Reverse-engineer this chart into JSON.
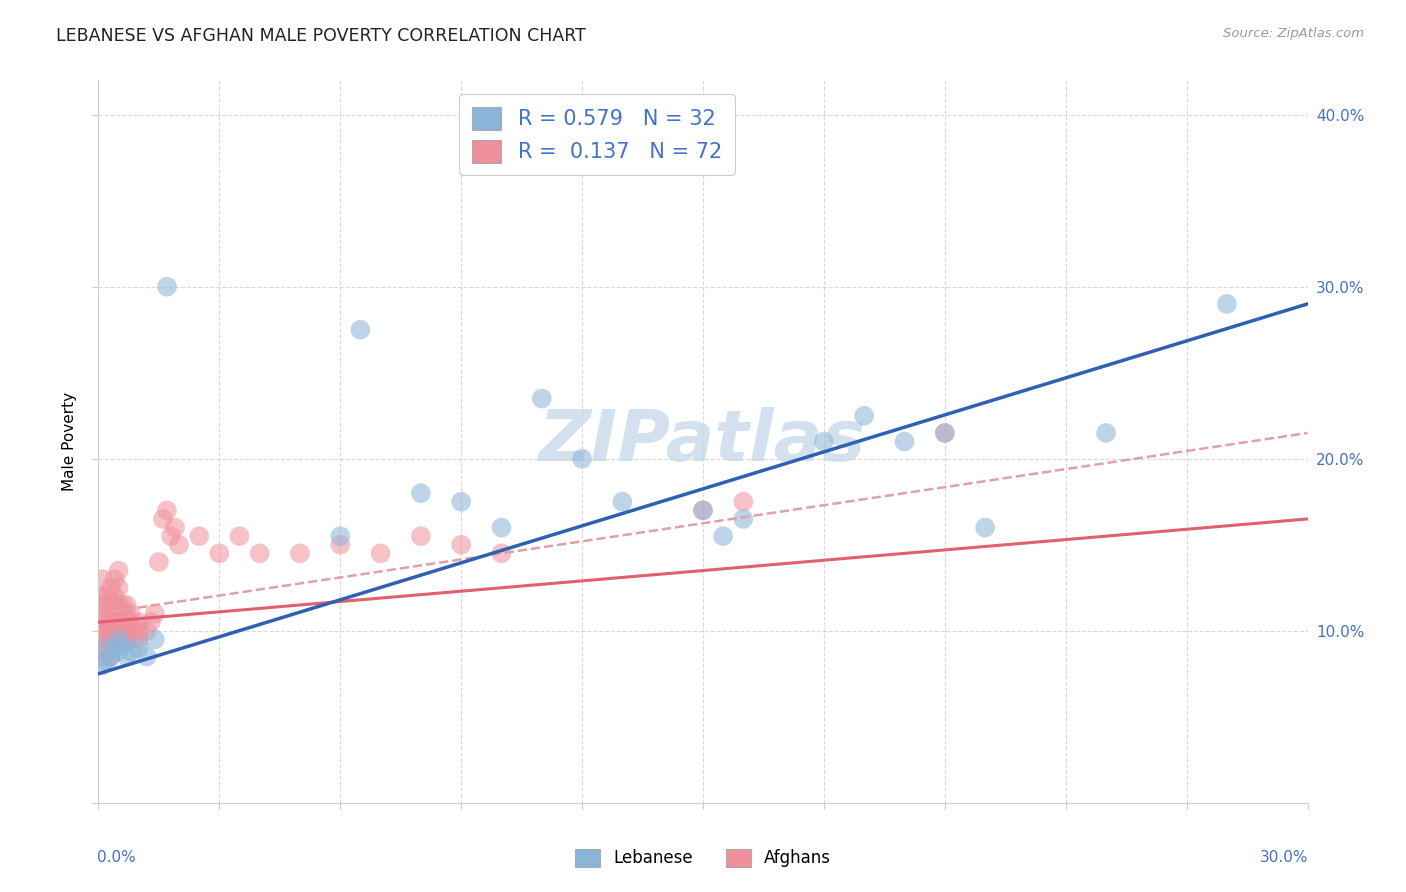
{
  "title": "LEBANESE VS AFGHAN MALE POVERTY CORRELATION CHART",
  "source": "Source: ZipAtlas.com",
  "ylabel": "Male Poverty",
  "xlim": [
    0.0,
    0.3
  ],
  "ylim": [
    0.0,
    0.42
  ],
  "lebanese_r": "0.579",
  "lebanese_n": "32",
  "afghan_r": "0.137",
  "afghan_n": "72",
  "lebanese_color": "#8ab4d8",
  "afghan_color": "#f0909c",
  "lebanese_line_color": "#3060b0",
  "afghan_solid_line_color": "#e06070",
  "afghan_dashed_line_color": "#e0a0a8",
  "watermark_color": "#c5d8ea",
  "grid_color": "#d0d0d0",
  "title_color": "#222222",
  "source_color": "#999999",
  "leb_x": [
    0.001,
    0.001,
    0.002,
    0.003,
    0.004,
    0.005,
    0.005,
    0.006,
    0.007,
    0.008,
    0.01,
    0.012,
    0.014,
    0.017,
    0.06,
    0.065,
    0.08,
    0.09,
    0.1,
    0.11,
    0.12,
    0.13,
    0.15,
    0.155,
    0.16,
    0.18,
    0.19,
    0.2,
    0.21,
    0.22,
    0.25,
    0.28
  ],
  "leb_y": [
    0.08,
    0.09,
    0.082,
    0.085,
    0.09,
    0.088,
    0.095,
    0.092,
    0.085,
    0.088,
    0.09,
    0.085,
    0.095,
    0.3,
    0.155,
    0.275,
    0.18,
    0.175,
    0.16,
    0.235,
    0.2,
    0.175,
    0.17,
    0.155,
    0.165,
    0.21,
    0.225,
    0.21,
    0.215,
    0.16,
    0.215,
    0.29
  ],
  "afg_x": [
    0.001,
    0.001,
    0.001,
    0.001,
    0.001,
    0.001,
    0.001,
    0.001,
    0.002,
    0.002,
    0.002,
    0.002,
    0.002,
    0.002,
    0.003,
    0.003,
    0.003,
    0.003,
    0.003,
    0.003,
    0.004,
    0.004,
    0.004,
    0.004,
    0.004,
    0.004,
    0.005,
    0.005,
    0.005,
    0.005,
    0.005,
    0.005,
    0.005,
    0.006,
    0.006,
    0.006,
    0.006,
    0.006,
    0.007,
    0.007,
    0.007,
    0.007,
    0.008,
    0.008,
    0.008,
    0.009,
    0.009,
    0.01,
    0.01,
    0.01,
    0.012,
    0.013,
    0.014,
    0.015,
    0.016,
    0.017,
    0.018,
    0.019,
    0.02,
    0.025,
    0.03,
    0.035,
    0.04,
    0.05,
    0.06,
    0.07,
    0.08,
    0.09,
    0.1,
    0.15,
    0.16,
    0.21
  ],
  "afg_y": [
    0.095,
    0.1,
    0.105,
    0.115,
    0.12,
    0.13,
    0.11,
    0.085,
    0.095,
    0.1,
    0.105,
    0.115,
    0.12,
    0.09,
    0.095,
    0.1,
    0.105,
    0.11,
    0.085,
    0.125,
    0.095,
    0.1,
    0.11,
    0.115,
    0.12,
    0.13,
    0.095,
    0.1,
    0.105,
    0.11,
    0.115,
    0.125,
    0.135,
    0.095,
    0.1,
    0.105,
    0.11,
    0.115,
    0.095,
    0.1,
    0.11,
    0.115,
    0.1,
    0.105,
    0.11,
    0.095,
    0.1,
    0.095,
    0.1,
    0.105,
    0.1,
    0.105,
    0.11,
    0.14,
    0.165,
    0.17,
    0.155,
    0.16,
    0.15,
    0.155,
    0.145,
    0.155,
    0.145,
    0.145,
    0.15,
    0.145,
    0.155,
    0.15,
    0.145,
    0.17,
    0.175,
    0.215
  ]
}
